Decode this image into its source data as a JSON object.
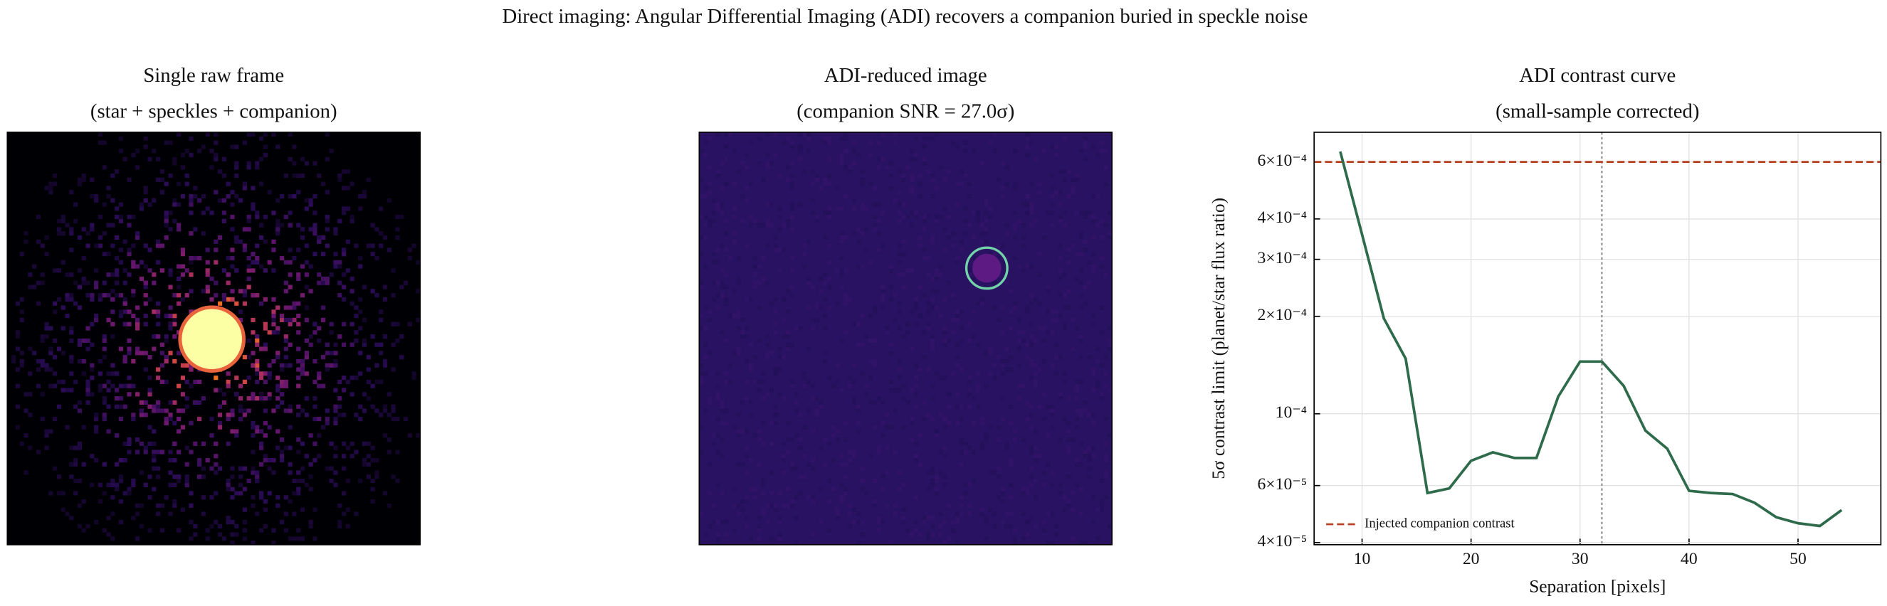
{
  "figure_title": "Direct imaging: Angular Differential Imaging (ADI) recovers a companion buried in speckle noise",
  "chart_data": [
    {
      "type": "image",
      "title": "Single raw frame",
      "subtitle": "(star + speckles + companion)"
    },
    {
      "type": "image",
      "title": "ADI-reduced image",
      "subtitle": "(companion SNR = 27.0σ)"
    },
    {
      "type": "line",
      "title": "ADI contrast curve",
      "subtitle": "(small-sample corrected)",
      "x_label": "Separation [pixels]",
      "y_label": "5σ contrast limit (planet/star flux ratio)",
      "x": [
        8,
        10,
        12,
        14,
        16,
        18,
        20,
        22,
        24,
        26,
        28,
        30,
        32,
        34,
        36,
        38,
        40,
        42,
        44,
        46,
        48,
        50,
        52,
        54
      ],
      "series": [
        {
          "color": "#2e6b4b",
          "values": [
            0.000646,
            0.000358,
            0.000197,
            0.000148,
            5.69e-05,
            5.88e-05,
            7.16e-05,
            7.6e-05,
            7.3e-05,
            7.3e-05,
            0.000113,
            0.000145,
            0.000145,
            0.000122,
            8.87e-05,
            7.8e-05,
            5.78e-05,
            5.69e-05,
            5.65e-05,
            5.31e-05,
            4.79e-05,
            4.59e-05,
            4.5e-05,
            5.04e-05
          ]
        }
      ],
      "hlines": [
        {
          "name": "Injected companion contrast",
          "value": 0.0006,
          "color": "#b5401f"
        }
      ],
      "vlines": [
        {
          "value": 32,
          "color": "#888888"
        }
      ],
      "xlim": [
        5.6,
        57.6
      ],
      "ylim": [
        3.94e-05,
        0.000741
      ],
      "ylog": true,
      "grid": true,
      "legend": "lower left",
      "xticks": [
        10,
        20,
        30,
        40,
        50
      ],
      "yticks": [
        {
          "value": 4e-05,
          "label": "4×10⁻⁵"
        },
        {
          "value": 6e-05,
          "label": "6×10⁻⁵"
        },
        {
          "value": 0.0001,
          "label": "10⁻⁴"
        },
        {
          "value": 0.0002,
          "label": "2×10⁻⁴"
        },
        {
          "value": 0.0003,
          "label": "3×10⁻⁴"
        },
        {
          "value": 0.0004,
          "label": "4×10⁻⁴"
        },
        {
          "value": 0.0006,
          "label": "6×10⁻⁴"
        }
      ]
    }
  ]
}
